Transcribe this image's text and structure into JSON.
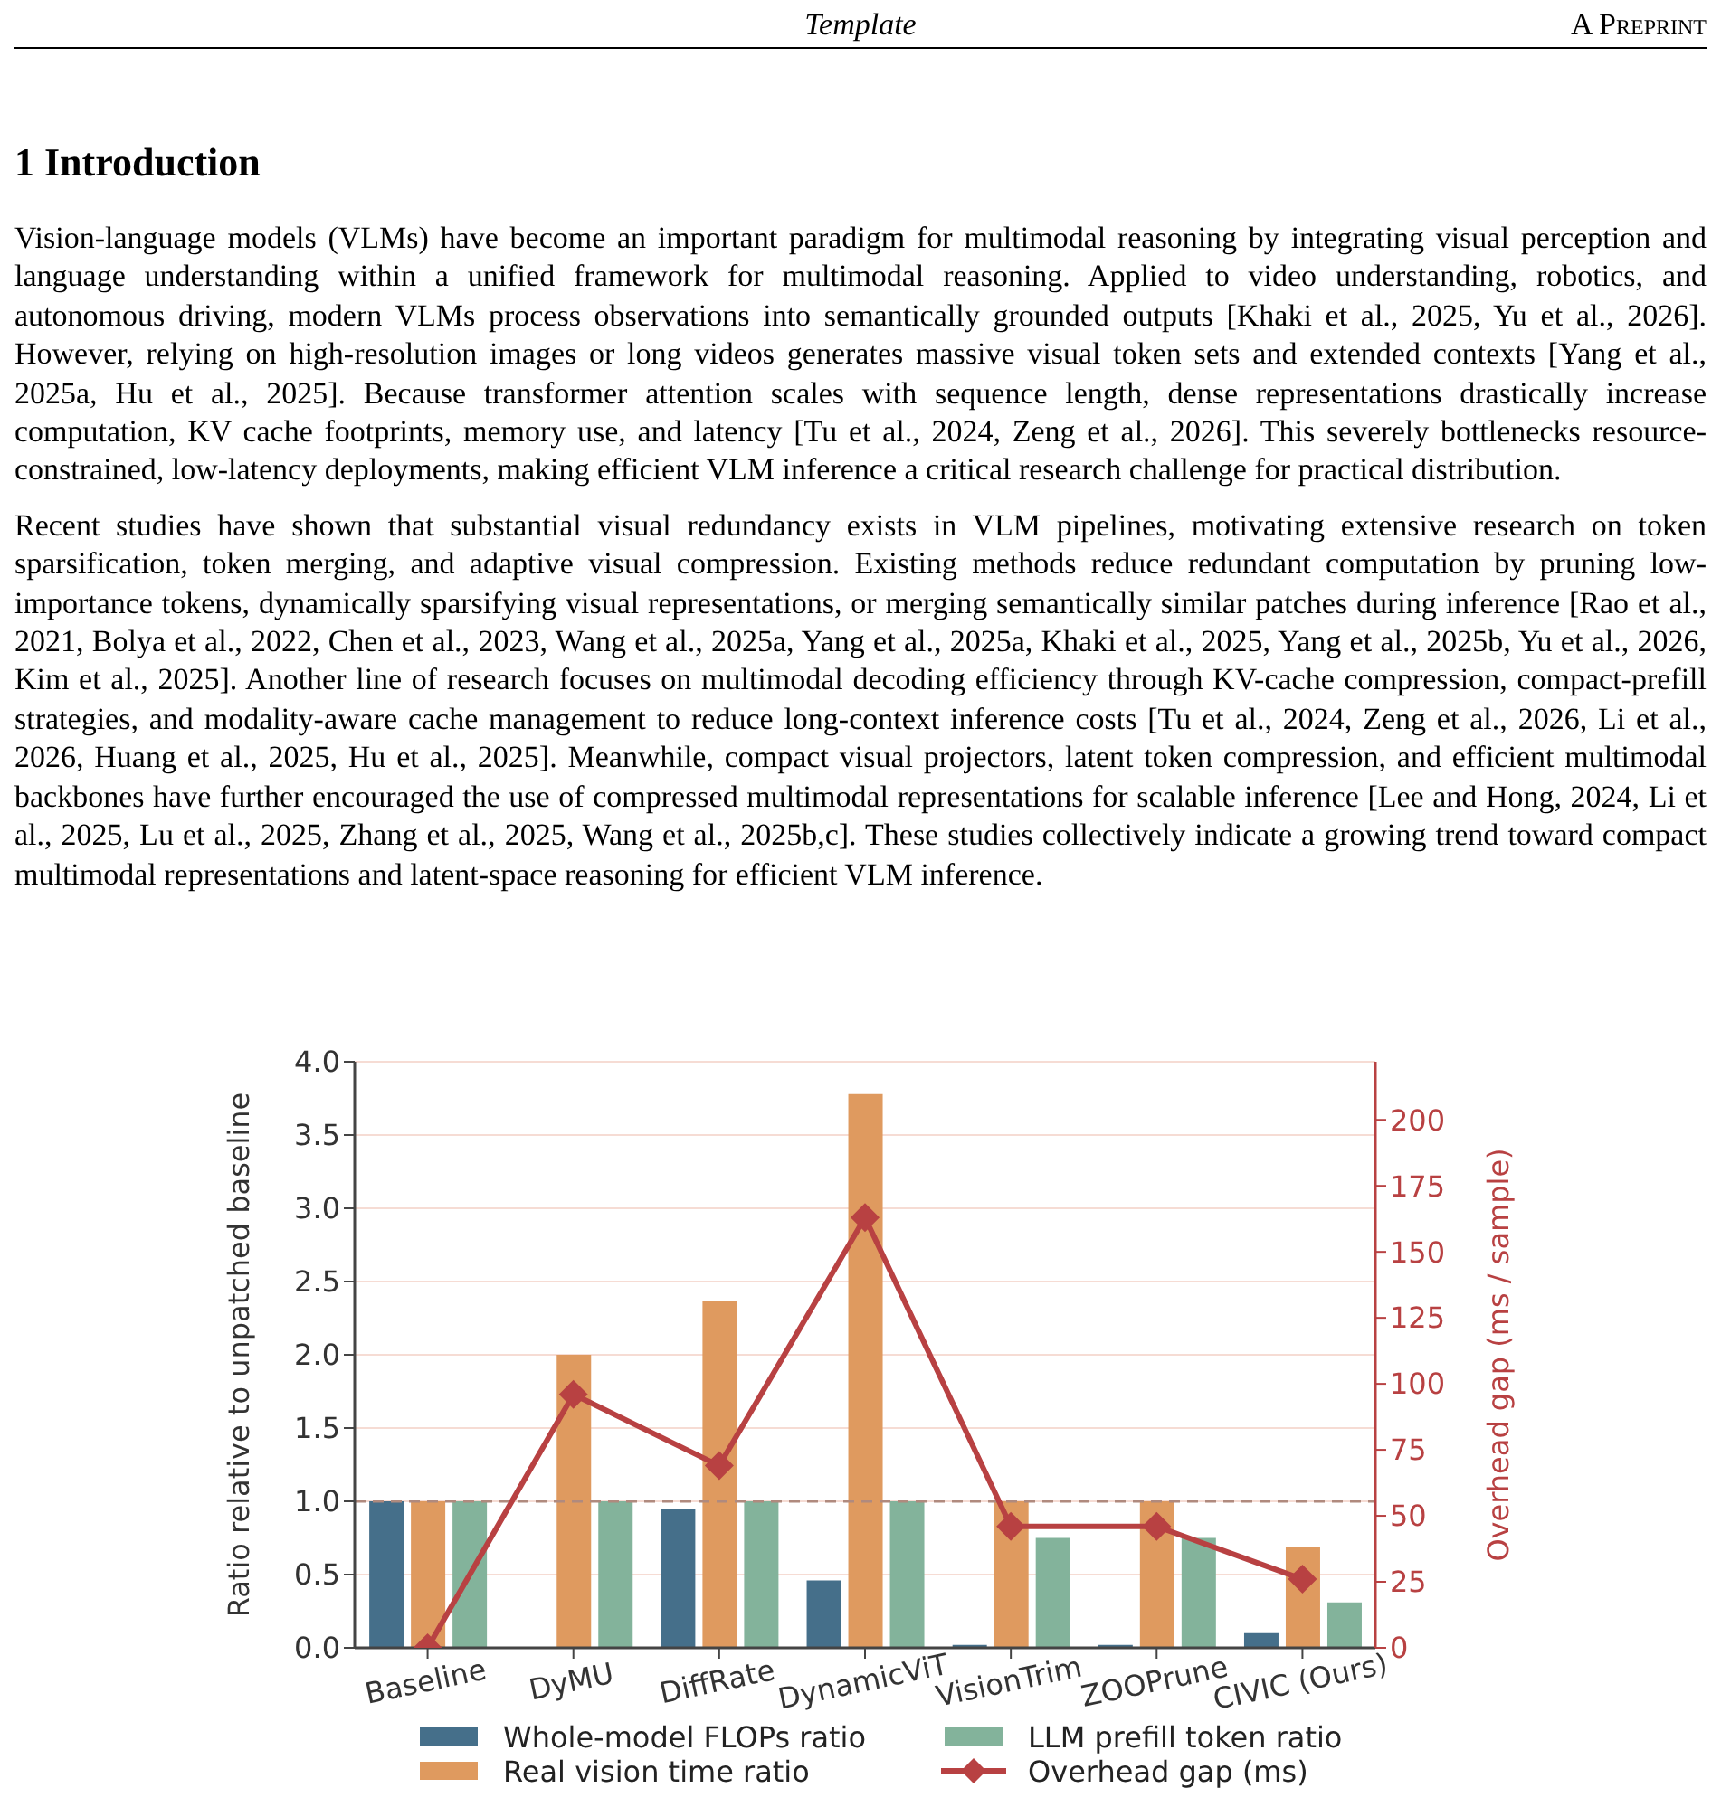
{
  "chart_data": {
    "type": "bar",
    "annotations": [
      "Template",
      "A Preprint",
      "1 Introduction",
      "Vision-language models (VLMs) have become an important paradigm for multimodal reasoning by integrating visual perception and language understanding within a unified framework for multimodal reasoning. Applied to video understanding, robotics, and autonomous driving, modern VLMs process observations into semantically grounded outputs [Khaki et al., 2025, Yu et al., 2026]. However, relying on high-resolution images or long videos generates massive visual token sets and extended contexts [Yang et al., 2025a, Hu et al., 2025]. Because transformer attention scales with sequence length, dense representations drastically increase computation, KV cache footprints, memory use, and latency [Tu et al., 2024, Zeng et al., 2026]. This severely bottlenecks resource-constrained, low-latency deployments, making efficient VLM inference a critical research challenge for practical distribution.",
      "Recent studies have shown that substantial visual redundancy exists in VLM pipelines, motivating extensive research on token sparsification, token merging, and adaptive visual compression. Existing methods reduce redundant computation by pruning low-importance tokens, dynamically sparsifying visual representations, or merging semantically similar patches during inference [Rao et al., 2021, Bolya et al., 2022, Chen et al., 2023, Wang et al., 2025a, Yang et al., 2025a, Khaki et al., 2025, Yang et al., 2025b, Yu et al., 2026, Kim et al., 2025]. Another line of research focuses on multimodal decoding efficiency through KV-cache compression, compact-prefill strategies, and modality-aware cache management to reduce long-context inference costs [Tu et al., 2024, Zeng et al., 2026, Li et al., 2026, Huang et al., 2025, Hu et al., 2025]. Meanwhile, compact visual projectors, latent token compression, and efficient multimodal backbones have further encouraged the use of compressed multimodal representations for scalable inference [Lee and Hong, 2024, Li et al., 2025, Lu et al., 2025, Zhang et al., 2025, Wang et al., 2025b,c]. These studies collectively indicate a growing trend toward compact multimodal representations and latent-space reasoning for efficient VLM inference."
    ],
    "categories": [
      "Baseline",
      "DyMU",
      "DiffRate",
      "DynamicViT",
      "VisionTrim",
      "ZOOPrune",
      "CIVIC (Ours)"
    ],
    "series": [
      {
        "name": "Whole-model FLOPs ratio",
        "color": "#456f8a",
        "values": [
          1.0,
          null,
          0.95,
          0.46,
          0.02,
          0.02,
          0.1
        ]
      },
      {
        "name": "Real vision time ratio",
        "color": "#df9a5f",
        "values": [
          1.0,
          2.0,
          2.37,
          3.78,
          1.0,
          1.0,
          0.69
        ]
      },
      {
        "name": "LLM prefill token ratio",
        "color": "#83b39b",
        "values": [
          1.0,
          1.0,
          1.0,
          1.0,
          0.75,
          0.75,
          0.31
        ]
      },
      {
        "name": "Overhead gap (ms)",
        "type": "line",
        "axis": "y2",
        "color": "#b84142",
        "marker": "diamond",
        "values": [
          0,
          96,
          69,
          163,
          46,
          46,
          26
        ]
      }
    ],
    "ylabel": "Ratio relative to unpatched baseline",
    "y2label": "Overhead gap (ms / sample)",
    "ylim": [
      0,
      4.0
    ],
    "yticks": [
      {
        "value": 0,
        "label": "0.0"
      },
      0.5,
      {
        "value": 1,
        "label": "1.0"
      },
      1.5,
      {
        "value": 2,
        "label": "2.0"
      },
      2.5,
      {
        "value": 3,
        "label": "3.0"
      },
      3.5,
      {
        "value": 4,
        "label": "4.0"
      }
    ],
    "y2lim": [
      0,
      222
    ],
    "y2ticks": [
      0,
      25,
      50,
      75,
      100,
      125,
      150,
      175,
      200
    ],
    "ref_lines": [
      {
        "axis": "y",
        "value": 1.0,
        "color": "#b08a7e",
        "line_style": "dashed"
      }
    ],
    "grid": "y",
    "legend": "bottom"
  }
}
